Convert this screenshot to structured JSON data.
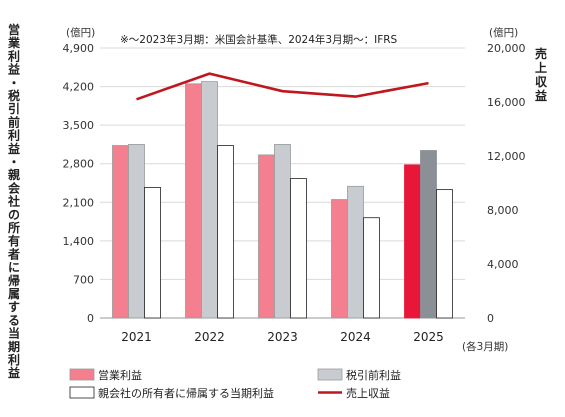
{
  "chart_data": {
    "type": "bar+line",
    "note": "※～2023年3月期：米国会計基準、2024年3月期～：IFRS",
    "categories": [
      "2021",
      "2022",
      "2023",
      "2024",
      "2025"
    ],
    "x_unit": "(各3月期)",
    "left_axis": {
      "unit": "(億円)",
      "label": "営業利益・税引前利益・親会社の所有者に帰属する当期利益",
      "ylim": [
        0,
        4900
      ],
      "ticks": [
        "0",
        "700",
        "1,400",
        "2,100",
        "2,800",
        "3,500",
        "4,200",
        "4,900"
      ]
    },
    "right_axis": {
      "unit": "(億円)",
      "label": "売上収益",
      "ylim": [
        0,
        20000
      ],
      "ticks": [
        "0",
        "4,000",
        "8,000",
        "12,000",
        "16,000",
        "20,000"
      ]
    },
    "series": [
      {
        "name": "営業利益",
        "kind": "bar",
        "axis": "left",
        "color": "#f47f8f",
        "highlight_color": "#e8173a",
        "values": [
          3130,
          4250,
          2960,
          2150,
          2780
        ]
      },
      {
        "name": "税引前利益",
        "kind": "bar",
        "axis": "left",
        "color": "#c8ccd0",
        "highlight_color": "#8a9096",
        "values": [
          3150,
          4290,
          3150,
          2390,
          3040
        ]
      },
      {
        "name": "親会社の所有者に帰属する当期利益",
        "kind": "bar",
        "axis": "left",
        "color": "#ffffff",
        "values": [
          2370,
          3130,
          2530,
          1820,
          2330
        ]
      },
      {
        "name": "売上収益",
        "kind": "line",
        "axis": "right",
        "color": "#c0161e",
        "values": [
          16200,
          18100,
          16800,
          16400,
          17400
        ]
      }
    ],
    "legend": [
      {
        "label": "営業利益",
        "swatch": "bar",
        "color": "#f47f8f"
      },
      {
        "label": "税引前利益",
        "swatch": "bar",
        "color": "#c8ccd0"
      },
      {
        "label": "親会社の所有者に帰属する当期利益",
        "swatch": "bar",
        "color": "#ffffff"
      },
      {
        "label": "売上収益",
        "swatch": "line",
        "color": "#c0161e"
      }
    ]
  }
}
